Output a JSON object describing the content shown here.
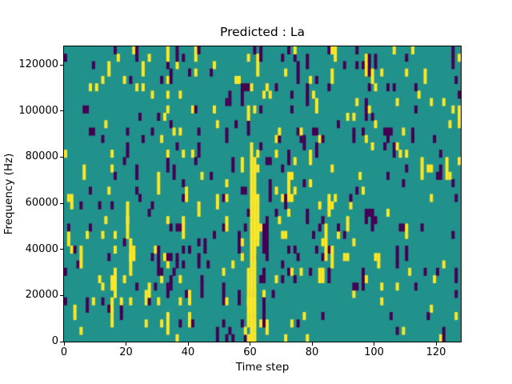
{
  "background": "#ffffff",
  "axes_color": "#000000",
  "chart_data": {
    "type": "heatmap",
    "title": "Predicted : La",
    "xlabel": "Time step",
    "ylabel": "Frequency (Hz)",
    "x_range": [
      0,
      128
    ],
    "y_range": [
      0,
      128000
    ],
    "x_ticks": [
      0,
      20,
      40,
      60,
      80,
      100,
      120
    ],
    "x_tick_labels": [
      "0",
      "20",
      "40",
      "60",
      "80",
      "100",
      "120"
    ],
    "y_ticks": [
      0,
      20000,
      40000,
      60000,
      80000,
      100000,
      120000
    ],
    "y_tick_labels": [
      "0",
      "20000",
      "40000",
      "60000",
      "80000",
      "100000",
      "120000"
    ],
    "grid": {
      "cols": 128,
      "rows": 40
    },
    "colormap": {
      "name": "viridis-ternary",
      "mid": "#21918c",
      "high": "#fde725",
      "low": "#440154"
    },
    "legend": "none",
    "grid_lines": "off",
    "cells": {
      "noise": {
        "seed": 12,
        "run_extend_prob": 0.2,
        "regions": [
          {
            "cols": [
              0,
              18
            ],
            "p_low": 0.035,
            "p_high": 0.028
          },
          {
            "cols": [
              19,
              40
            ],
            "p_low": 0.04,
            "p_high": 0.04
          },
          {
            "cols": [
              41,
              56
            ],
            "p_low": 0.05,
            "p_high": 0.04
          },
          {
            "cols": [
              57,
              76
            ],
            "p_low": 0.055,
            "p_high": 0.05
          },
          {
            "cols": [
              77,
              100
            ],
            "p_low": 0.05,
            "p_high": 0.045
          },
          {
            "cols": [
              101,
              117
            ],
            "p_low": 0.042,
            "p_high": 0.038
          },
          {
            "cols": [
              118,
              127
            ],
            "p_low": 0.05,
            "p_high": 0.045
          }
        ]
      },
      "features": [
        {
          "value": "high",
          "col": 60,
          "rows": [
            0,
            26
          ]
        },
        {
          "value": "high",
          "col": 61,
          "rows": [
            0,
            24
          ]
        },
        {
          "value": "high",
          "col": 59,
          "rows": [
            2,
            9
          ]
        },
        {
          "value": "high",
          "col": 62,
          "rows": [
            13,
            19
          ]
        },
        {
          "value": "low",
          "col": 64,
          "rows": [
            2,
            5
          ]
        },
        {
          "value": "low",
          "col": 64,
          "rows": [
            12,
            13
          ]
        },
        {
          "value": "low",
          "col": 65,
          "rows": [
            11,
            16
          ]
        },
        {
          "value": "low",
          "col": 66,
          "rows": [
            19,
            21
          ]
        },
        {
          "value": "high",
          "col": 15,
          "rows": [
            2,
            5
          ]
        },
        {
          "value": "high",
          "col": 16,
          "rows": [
            6,
            9
          ]
        },
        {
          "value": "high",
          "col": 21,
          "rows": [
            9,
            13
          ]
        },
        {
          "value": "high",
          "col": 20,
          "rows": [
            16,
            18
          ]
        },
        {
          "value": "high",
          "col": 22,
          "rows": [
            11,
            12
          ]
        },
        {
          "value": "high",
          "col": 84,
          "rows": [
            11,
            15
          ]
        },
        {
          "value": "high",
          "col": 85,
          "rows": [
            17,
            19
          ]
        },
        {
          "value": "high",
          "col": 83,
          "rows": [
            8,
            9
          ]
        },
        {
          "value": "high",
          "col": 97,
          "rows": [
            36,
            37
          ]
        },
        {
          "value": "low",
          "col": 98,
          "rows": [
            36,
            38
          ]
        },
        {
          "value": "high",
          "col": 99,
          "rows": [
            35,
            36
          ]
        }
      ]
    }
  }
}
